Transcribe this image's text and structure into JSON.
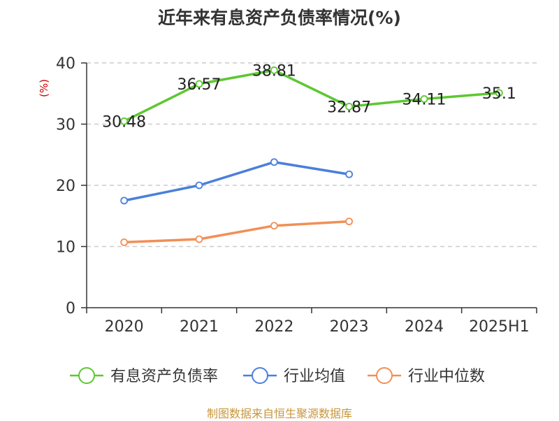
{
  "chart_data": {
    "type": "line",
    "title": "近年来有息资产负债率情况(%)",
    "ylabel": "(%)",
    "xlabel": "",
    "categories": [
      "2020",
      "2021",
      "2022",
      "2023",
      "2024",
      "2025H1"
    ],
    "ylim": [
      0,
      40
    ],
    "yticks": [
      0,
      10,
      20,
      30,
      40
    ],
    "grid": "horizontal-dashed",
    "legend_position": "bottom",
    "series": [
      {
        "name": "有息资产负债率",
        "color": "#5cc830",
        "values": [
          30.48,
          36.57,
          38.81,
          32.87,
          34.11,
          35.1
        ],
        "labels": [
          "30.48",
          "36.57",
          "38.81",
          "32.87",
          "34.11",
          "35.1"
        ]
      },
      {
        "name": "行业均值",
        "color": "#4a7fdc",
        "values": [
          17.5,
          20.0,
          23.8,
          21.8,
          null,
          null
        ]
      },
      {
        "name": "行业中位数",
        "color": "#f28f56",
        "values": [
          10.7,
          11.2,
          13.4,
          14.1,
          null,
          null
        ]
      }
    ]
  },
  "source_note": "制图数据来自恒生聚源数据库"
}
